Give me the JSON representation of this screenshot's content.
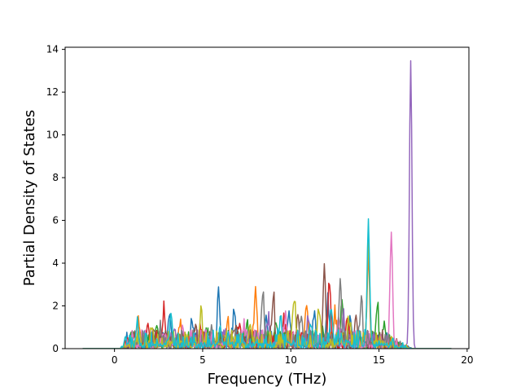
{
  "chart_data": {
    "type": "line",
    "title": "",
    "xlabel": "Frequency (THz)",
    "ylabel": "Partial Density of States",
    "xlim": [
      -2.8,
      20.1
    ],
    "ylim": [
      0,
      14.1
    ],
    "xticks": [
      0,
      5,
      10,
      15,
      20
    ],
    "yticks": [
      0,
      2,
      4,
      6,
      8,
      10,
      12,
      14
    ],
    "grid": false,
    "legend": "none",
    "x_range": [
      -1.8,
      19.1
    ],
    "series": [
      {
        "color": "#1f77b4",
        "peaks": [
          [
            5.9,
            2.6
          ],
          [
            6.8,
            1.6
          ],
          [
            9.9,
            1.6
          ],
          [
            12.1,
            1.9
          ],
          [
            13.4,
            1.1
          ],
          [
            3.1,
            1.3
          ],
          [
            0.7,
            0.4
          ],
          [
            8.6,
            1.5
          ],
          [
            11.3,
            1.2
          ],
          [
            4.4,
            1.0
          ]
        ]
      },
      {
        "color": "#ff7f0e",
        "peaks": [
          [
            8.0,
            2.7
          ],
          [
            14.4,
            4.0
          ],
          [
            10.9,
            1.8
          ],
          [
            1.4,
            1.0
          ],
          [
            6.4,
            1.0
          ],
          [
            12.5,
            1.4
          ],
          [
            3.7,
            0.9
          ]
        ]
      },
      {
        "color": "#2ca02c",
        "peaks": [
          [
            14.9,
            1.8
          ],
          [
            11.8,
            0.9
          ],
          [
            7.5,
            0.9
          ],
          [
            12.9,
            2.1
          ],
          [
            2.4,
            0.9
          ],
          [
            15.3,
            1.1
          ],
          [
            9.2,
            1.0
          ],
          [
            5.2,
            0.7
          ]
        ]
      },
      {
        "color": "#d62728",
        "peaks": [
          [
            2.8,
            1.5
          ],
          [
            12.2,
            2.9
          ],
          [
            7.1,
            0.9
          ],
          [
            1.9,
            1.1
          ],
          [
            9.6,
            1.1
          ],
          [
            4.9,
            0.8
          ],
          [
            13.2,
            1.1
          ]
        ]
      },
      {
        "color": "#9467bd",
        "peaks": [
          [
            16.8,
            13.45
          ],
          [
            8.7,
            1.1
          ],
          [
            11.0,
            1.2
          ],
          [
            13.0,
            1.0
          ],
          [
            3.4,
            0.8
          ],
          [
            6.2,
            0.8
          ]
        ]
      },
      {
        "color": "#8c564b",
        "peaks": [
          [
            11.9,
            3.7
          ],
          [
            9.0,
            2.3
          ],
          [
            13.7,
            1.5
          ],
          [
            4.6,
            1.0
          ],
          [
            10.4,
            1.4
          ],
          [
            2.2,
            0.9
          ],
          [
            6.9,
            0.9
          ]
        ]
      },
      {
        "color": "#e377c2",
        "peaks": [
          [
            15.7,
            5.4
          ],
          [
            9.7,
            1.5
          ],
          [
            12.7,
            1.3
          ],
          [
            3.9,
            0.7
          ],
          [
            7.3,
            0.7
          ],
          [
            1.6,
            0.6
          ]
        ]
      },
      {
        "color": "#7f7f7f",
        "peaks": [
          [
            12.8,
            3.1
          ],
          [
            8.4,
            2.4
          ],
          [
            14.0,
            2.0
          ],
          [
            10.6,
            1.3
          ],
          [
            5.5,
            0.8
          ],
          [
            2.6,
            0.8
          ]
        ]
      },
      {
        "color": "#bcbd22",
        "peaks": [
          [
            14.4,
            5.0
          ],
          [
            10.2,
            2.0
          ],
          [
            4.9,
            1.5
          ],
          [
            11.6,
            1.7
          ],
          [
            7.7,
            1.0
          ],
          [
            2.1,
            0.9
          ],
          [
            13.3,
            1.2
          ]
        ]
      },
      {
        "color": "#17becf",
        "peaks": [
          [
            14.4,
            5.8
          ],
          [
            3.2,
            1.4
          ],
          [
            12.3,
            1.8
          ],
          [
            0.6,
            0.3
          ],
          [
            9.4,
            1.0
          ],
          [
            6.0,
            0.8
          ],
          [
            1.3,
            0.7
          ],
          [
            11.1,
            1.0
          ]
        ]
      }
    ]
  }
}
